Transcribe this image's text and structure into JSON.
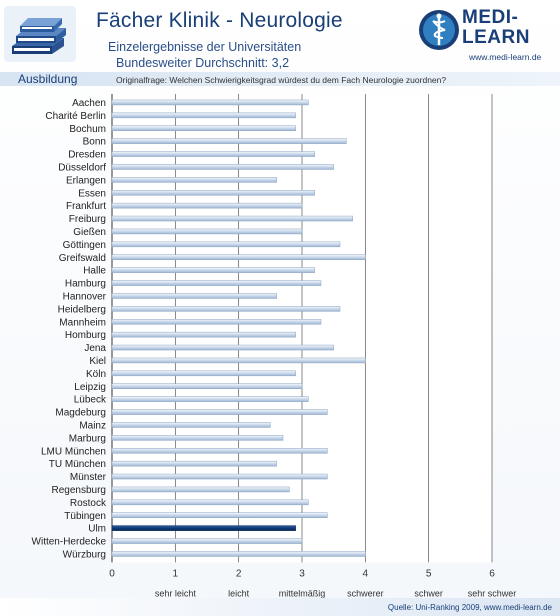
{
  "header": {
    "title": "Fächer Klinik - Neurologie",
    "subtitle_line1": "Einzelergebnisse der Universitäten",
    "subtitle_line2_prefix": "Bundesweiter Durchschnitt: ",
    "subtitle_line2_value": "3,2",
    "logo_line1": "MEDI-",
    "logo_line2": "LEARN",
    "logo_url": "www.medi-learn.de"
  },
  "section_label": "Ausbildung",
  "question": "Originalfrage: Welchen Schwierigkeitsgrad würdest du dem Fach Neurologie zuordnen?",
  "footer": {
    "source": "Quelle: Uni-Ranking 2009, www.medi-learn.de"
  },
  "colors": {
    "bar": "#c9d8ea",
    "bar_highlight": "#0f3a78",
    "title": "#1a3f78",
    "accent": "#2f7fc1"
  },
  "icons": {
    "header_graphic": "books-icon",
    "logo_graphic": "caduceus-icon"
  },
  "chart_data": {
    "type": "bar",
    "orientation": "horizontal",
    "categories": [
      "Aachen",
      "Charité Berlin",
      "Bochum",
      "Bonn",
      "Dresden",
      "Düsseldorf",
      "Erlangen",
      "Essen",
      "Frankfurt",
      "Freiburg",
      "Gießen",
      "Göttingen",
      "Greifswald",
      "Halle",
      "Hamburg",
      "Hannover",
      "Heidelberg",
      "Mannheim",
      "Homburg",
      "Jena",
      "Kiel",
      "Köln",
      "Leipzig",
      "Lübeck",
      "Magdeburg",
      "Mainz",
      "Marburg",
      "LMU München",
      "TU München",
      "Münster",
      "Regensburg",
      "Rostock",
      "Tübingen",
      "Ulm",
      "Witten-Herdecke",
      "Würzburg"
    ],
    "values": [
      3.1,
      2.9,
      2.9,
      3.7,
      3.2,
      3.5,
      2.6,
      3.2,
      3.0,
      3.8,
      3.0,
      3.6,
      4.0,
      3.2,
      3.3,
      2.6,
      3.6,
      3.3,
      2.9,
      3.5,
      4.0,
      2.9,
      3.0,
      3.1,
      3.4,
      2.5,
      2.7,
      3.4,
      2.6,
      3.4,
      2.8,
      3.1,
      3.4,
      2.9,
      3.0,
      4.0
    ],
    "highlight": "Ulm",
    "xlim": [
      0,
      6
    ],
    "xticks": [
      "0",
      "1",
      "2",
      "3",
      "4",
      "5",
      "6"
    ],
    "scale_labels": [
      "sehr leicht",
      "leicht",
      "mittelmäßig",
      "schwerer",
      "schwer",
      "sehr schwer"
    ],
    "grid": true
  }
}
